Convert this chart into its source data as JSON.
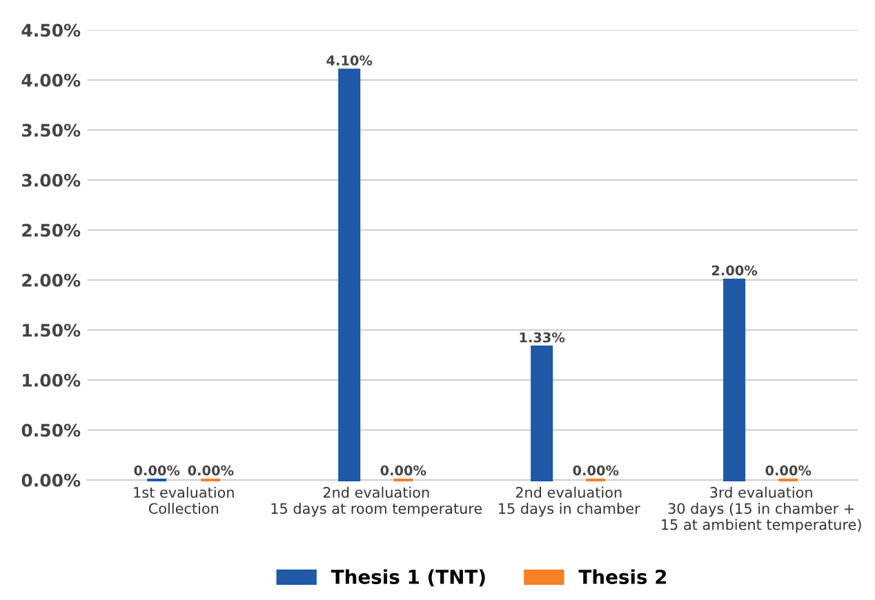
{
  "chart_data": {
    "type": "bar",
    "categories": [
      "1st evaluation\nCollection",
      "2nd evaluation\n15 days at room temperature",
      "2nd evaluation\n15 days in chamber",
      "3rd evaluation\n30 days (15 in chamber +\n15 at ambient temperature)"
    ],
    "series": [
      {
        "name": "Thesis 1 (TNT)",
        "color": "#1f59a8",
        "values": [
          0,
          4.1,
          1.33,
          2.0
        ],
        "value_labels": [
          "0.00%",
          "4.10%",
          "1.33%",
          "2.00%"
        ]
      },
      {
        "name": "Thesis 2",
        "color": "#f58025",
        "values": [
          0,
          0,
          0,
          0
        ],
        "value_labels": [
          "0.00%",
          "0.00%",
          "0.00%",
          "0.00%"
        ]
      }
    ],
    "ylim": [
      0,
      4.5
    ],
    "yticks": [
      {
        "value": 0,
        "label": "0.00%"
      },
      {
        "value": 0.5,
        "label": "0.50%"
      },
      {
        "value": 1,
        "label": "1.00%"
      },
      {
        "value": 1.5,
        "label": "1.50%"
      },
      {
        "value": 2,
        "label": "2.00%"
      },
      {
        "value": 2.5,
        "label": "2.50%"
      },
      {
        "value": 3,
        "label": "3.00%"
      },
      {
        "value": 3.5,
        "label": "3.50%"
      },
      {
        "value": 4,
        "label": "4.00%"
      },
      {
        "value": 4.5,
        "label": "4.50%"
      }
    ],
    "grid": "y",
    "legend": "bottom"
  }
}
